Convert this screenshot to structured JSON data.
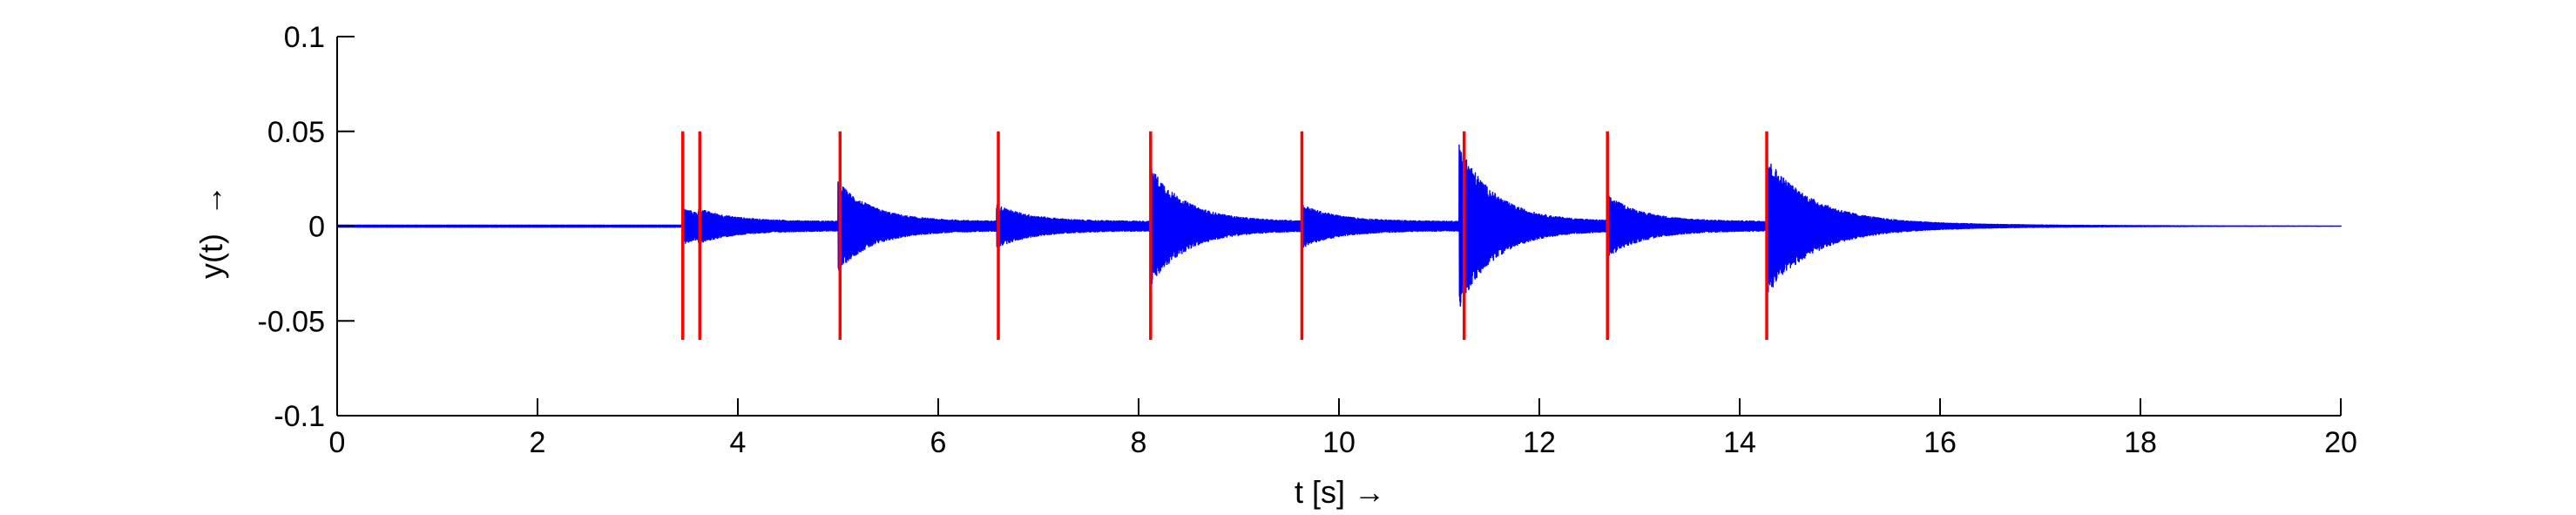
{
  "chart_data": {
    "type": "line",
    "title": "",
    "xlabel": "t [s] →",
    "ylabel": "y(t)  →",
    "xlim": [
      0,
      20
    ],
    "ylim": [
      -0.1,
      0.1
    ],
    "x_ticks": [
      0,
      2,
      4,
      6,
      8,
      10,
      12,
      14,
      16,
      18,
      20
    ],
    "y_ticks": [
      -0.1,
      -0.05,
      0,
      0.05,
      0.1
    ],
    "x_tick_labels": [
      "0",
      "2",
      "4",
      "6",
      "8",
      "10",
      "12",
      "14",
      "16",
      "18",
      "20"
    ],
    "y_tick_labels": [
      "-0.1",
      "-0.05",
      "0",
      "0.05",
      "0.1"
    ],
    "grid": false,
    "legend": false,
    "series": [
      {
        "kind": "waveform",
        "color": "#0000ff",
        "signal_start": 3.45,
        "signal_end": 20,
        "onsets": [
          3.45,
          3.6,
          5.0,
          6.58,
          8.12,
          9.63,
          11.2,
          12.68,
          14.27
        ],
        "peak_amplitudes": [
          0.007,
          0.007,
          0.021,
          0.009,
          0.029,
          0.009,
          0.041,
          0.014,
          0.033
        ]
      },
      {
        "kind": "onset_markers",
        "color": "#ff0000",
        "x": [
          3.45,
          3.62,
          5.02,
          6.6,
          8.12,
          9.63,
          11.25,
          12.68,
          14.27
        ],
        "y_range": [
          -0.06,
          0.05
        ]
      }
    ]
  }
}
